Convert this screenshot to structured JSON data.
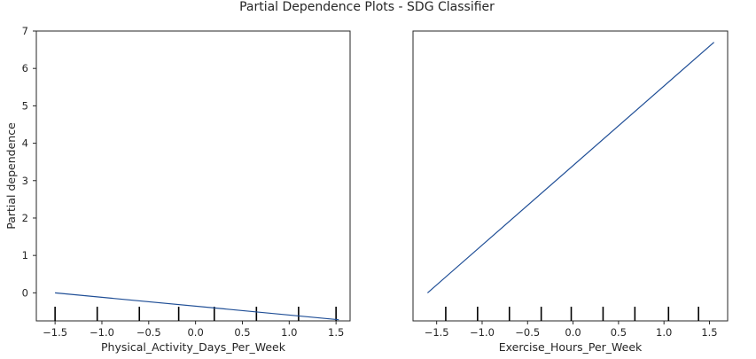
{
  "figure": {
    "title": "Partial Dependence Plots - SDG Classifier"
  },
  "chart_data": [
    {
      "type": "line",
      "xlabel": "Physical_Activity_Days_Per_Week",
      "ylabel": "Partial dependence",
      "xlim": [
        -1.7,
        1.65
      ],
      "ylim": [
        -0.75,
        7.0
      ],
      "xticks": [
        -1.5,
        -1.0,
        -0.5,
        0.0,
        0.5,
        1.0,
        1.5
      ],
      "xtick_labels": [
        "−1.5",
        "−1.0",
        "−0.5",
        "0.0",
        "0.5",
        "1.0",
        "1.5"
      ],
      "yticks": [
        0,
        1,
        2,
        3,
        4,
        5,
        6,
        7
      ],
      "ytick_labels": [
        "0",
        "1",
        "2",
        "3",
        "4",
        "5",
        "6",
        "7"
      ],
      "series": [
        {
          "x": [
            -1.5,
            1.53
          ],
          "y": [
            0.0,
            -0.72
          ]
        }
      ],
      "deciles": [
        -1.5,
        -1.05,
        -0.6,
        -0.18,
        0.2,
        0.65,
        1.1,
        1.5
      ],
      "line_color": "#1f4e96",
      "grid": false
    },
    {
      "type": "line",
      "xlabel": "Exercise_Hours_Per_Week",
      "ylabel": "",
      "xlim": [
        -1.76,
        1.7
      ],
      "ylim": [
        -0.75,
        7.0
      ],
      "xticks": [
        -1.5,
        -1.0,
        -0.5,
        0.0,
        0.5,
        1.0,
        1.5
      ],
      "xtick_labels": [
        "−1.5",
        "−1.0",
        "−0.5",
        "0.0",
        "0.5",
        "1.0",
        "1.5"
      ],
      "yticks": [],
      "ytick_labels": [],
      "series": [
        {
          "x": [
            -1.6,
            1.55
          ],
          "y": [
            0.0,
            6.7
          ]
        }
      ],
      "deciles": [
        -1.4,
        -1.05,
        -0.7,
        -0.35,
        -0.02,
        0.33,
        0.68,
        1.05,
        1.38
      ],
      "line_color": "#1f4e96",
      "grid": false
    }
  ]
}
